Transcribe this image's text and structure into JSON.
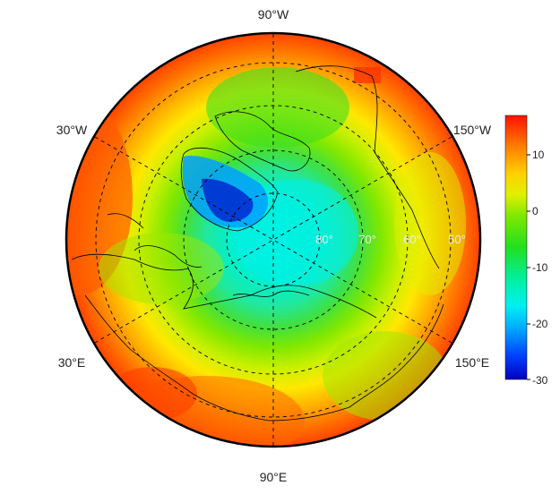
{
  "map": {
    "projection": "north-polar-stereographic",
    "longitude_labels": {
      "top": "90°W",
      "upper_left": "30°W",
      "upper_right": "150°W",
      "lower_left": "30°E",
      "lower_right": "150°E",
      "bottom": "90°E"
    },
    "latitude_labels": [
      "80°",
      "70°",
      "60°",
      "50°"
    ],
    "graticule": "dashed",
    "coastlines": true
  },
  "colorbar": {
    "ticks": [
      "10",
      "0",
      "-10",
      "-20",
      "-30"
    ],
    "range": [
      -30,
      17
    ],
    "colors": [
      "#0000c0",
      "#0060ff",
      "#00d8ff",
      "#00f0c0",
      "#20e040",
      "#60e800",
      "#c0f000",
      "#ffff00",
      "#ffc000",
      "#ff8000",
      "#ff3000",
      "#e00000"
    ]
  }
}
